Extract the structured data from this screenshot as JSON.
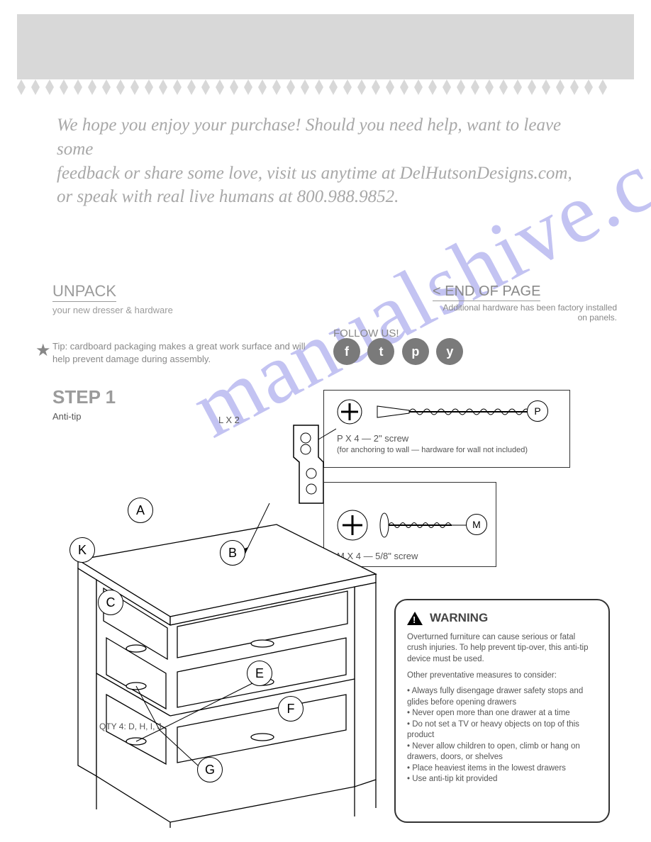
{
  "header_bg": "#d8d8d8",
  "diamond_count": 42,
  "hello": {
    "line1": "We hope you enjoy your purchase! Should you need help, want to leave some",
    "line2": " feedback or share some love, visit us anytime at DelHutsonDesigns.com,",
    "line3": "or speak with real live humans at 800.988.9852."
  },
  "unpack": {
    "title": "UNPACK",
    "sub": "your new dresser & hardware",
    "tip": "Tip: cardboard packaging makes a great work surface and will help prevent damage during assembly."
  },
  "follow": "FOLLOW US!",
  "social": [
    "f",
    "t",
    "p",
    "y"
  ],
  "page_end_head": "< END OF PAGE",
  "page_end_sub": "Additional hardware has been factory installed on panels.",
  "step_label": "STEP 1",
  "step_anti": "Anti-tip",
  "screw_top": {
    "label": "P",
    "desc": "P X 4 — 2\" screw",
    "dims": "(for anchoring to wall — hardware for wall not included)"
  },
  "screw_bot": {
    "label": "M",
    "desc": "M X 4 — 5/8\" screw"
  },
  "bracket_label": "L X 2",
  "dresser": {
    "A": "A",
    "K": "K",
    "B": "B",
    "C": "C",
    "E": "E",
    "F": "F",
    "G": "G",
    "drawer_qty": "QTY 4: D, H, I, J"
  },
  "warning": {
    "head": "WARNING",
    "l1": "Overturned furniture can cause serious or fatal crush injuries. To help prevent tip-over, this anti-tip device must be used.",
    "l2": "Other preventative measures to consider:",
    "b1": "• Always fully disengage drawer safety stops and glides before opening drawers",
    "b2": "• Never open more than one drawer at a time",
    "b3": "• Do not set a TV or heavy objects on top of this product",
    "b4": "• Never allow children to open, climb or hang on drawers, doors, or shelves",
    "b5": "• Place heaviest items in the lowest drawers",
    "b6": "• Use anti-tip kit provided"
  },
  "watermark": "manualshive.com"
}
